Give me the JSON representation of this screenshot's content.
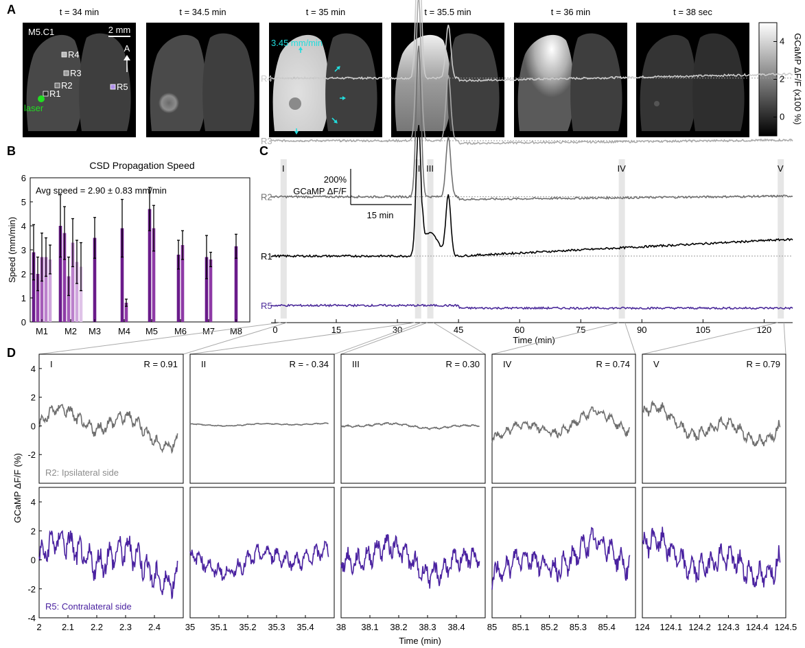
{
  "panels": {
    "A": {
      "letter": "A",
      "frames": [
        {
          "time_label": "t = 34 min",
          "frame_type": "baseline"
        },
        {
          "time_label": "t = 34.5 min",
          "frame_type": "onset"
        },
        {
          "time_label": "t = 35 min",
          "frame_type": "wave"
        },
        {
          "time_label": "t =  35.5 min",
          "frame_type": "spread"
        },
        {
          "time_label": "t = 36 min",
          "frame_type": "late"
        },
        {
          "time_label": "t = 38 sec",
          "frame_type": "recovery"
        }
      ],
      "animal_label": "M5.C1",
      "scale_label": "2 mm",
      "axis_label": "A",
      "speed_label": "3.45 mm/min",
      "laser_label": "laser",
      "roi_labels": [
        "R1",
        "R2",
        "R3",
        "R4",
        "R5"
      ],
      "colorbar": {
        "label": "GCaMP ΔF/F (x100 %)",
        "ticks": [
          "4",
          "2",
          "0"
        ],
        "range": [
          -1,
          5
        ]
      },
      "colors": {
        "laser": "#22dd22",
        "speed": "#22dddd",
        "r5": "#8855ee"
      }
    },
    "B": {
      "letter": "B",
      "chart_data": {
        "type": "bar",
        "title": "CSD Propagation Speed",
        "annotation": "Avg speed = 2.90 ± 0.83 mm/min",
        "ylabel": "Speed (mm/min)",
        "ylim": [
          0,
          6
        ],
        "yticks": [
          "0",
          "1",
          "2",
          "3",
          "4",
          "5",
          "6"
        ],
        "categories": [
          "M1",
          "M2",
          "M3",
          "M4",
          "M5",
          "M6",
          "M7",
          "M8"
        ],
        "groups": [
          {
            "category": "M1",
            "values": [
              2.9,
              2.0,
              2.7,
              2.7,
              2.6
            ],
            "errors": [
              1.15,
              0.7,
              1.0,
              0.8,
              0.6
            ]
          },
          {
            "category": "M2",
            "values": [
              4.0,
              3.7,
              1.9,
              3.3,
              2.5,
              2.3
            ],
            "errors": [
              1.3,
              1.1,
              0.8,
              1.0,
              0.9,
              1.0
            ]
          },
          {
            "category": "M3",
            "values": [
              3.5
            ],
            "errors": [
              0.85
            ]
          },
          {
            "category": "M4",
            "values": [
              3.9,
              0.8
            ],
            "errors": [
              1.2,
              0.15
            ]
          },
          {
            "category": "M5",
            "values": [
              4.7,
              3.9
            ],
            "errors": [
              0.9,
              0.95
            ]
          },
          {
            "category": "M6",
            "values": [
              2.8,
              3.2
            ],
            "errors": [
              0.6,
              0.6
            ]
          },
          {
            "category": "M7",
            "values": [
              2.7,
              2.6
            ],
            "errors": [
              0.9,
              0.3
            ]
          },
          {
            "category": "M8",
            "values": [
              3.15
            ],
            "errors": [
              0.5
            ]
          }
        ],
        "shade_colors": [
          "#6a1b8a",
          "#8e3aa6",
          "#a45cb8",
          "#bb80cc",
          "#cfa5dc",
          "#dfc3e8"
        ]
      }
    },
    "C": {
      "letter": "C",
      "chart_data": {
        "type": "line",
        "xlabel": "Time (min)",
        "xlim": [
          -1,
          127
        ],
        "xticks": [
          "0",
          "15",
          "30",
          "45",
          "60",
          "75",
          "90",
          "105",
          "120"
        ],
        "scalebar_y": "200%",
        "scalebar_y2": "GCaMP ΔF/F",
        "scalebar_x": "15 min",
        "windows": [
          {
            "label": "I",
            "t": 2
          },
          {
            "label": "II",
            "t": 35
          },
          {
            "label": "III",
            "t": 38
          },
          {
            "label": "IV",
            "t": 85
          },
          {
            "label": "V",
            "t": 124
          }
        ],
        "series": [
          {
            "name": "R4",
            "color": "#cccccc",
            "baseline_level": 3.45,
            "peak1": 2.3,
            "peak2": 0.8,
            "late_rise": 0.1
          },
          {
            "name": "R3",
            "color": "#aaaaaa",
            "baseline_level": 2.5,
            "peak1": 2.2,
            "peak2": 1.0,
            "late_rise": 0.05
          },
          {
            "name": "R2",
            "color": "#707070",
            "baseline_level": 1.65,
            "peak1": 2.3,
            "peak2": 0.9,
            "late_rise": 0.05
          },
          {
            "name": "R1",
            "color": "#000000",
            "baseline_level": 0.75,
            "peak1": 2.0,
            "peak2": 0.9,
            "late_rise": 0.25
          },
          {
            "name": "R5",
            "color": "#4b2a9a",
            "baseline_level": 0.0,
            "peak1": 0.0,
            "peak2": 0.0,
            "late_rise": 0.0
          }
        ]
      }
    },
    "D": {
      "letter": "D",
      "chart_data": {
        "type": "line",
        "ylabel": "GCaMP ΔF/F (%)",
        "xlabel": "Time (min)",
        "ylim": [
          -4,
          5
        ],
        "yticks": [
          "4",
          "2",
          "0",
          "-2",
          "-4"
        ],
        "top_label": "R2: Ipsilateral side",
        "bottom_label": "R5: Contralateral side",
        "top_color": "#6e6e6e",
        "bottom_color": "#4a22a0",
        "windows": [
          {
            "label": "I",
            "r": "R = 0.91",
            "xlim": [
              2,
              2.5
            ],
            "xticks": [
              "2",
              "2.1",
              "2.2",
              "2.3",
              "2.4"
            ],
            "top_amp": 1.3,
            "top_offset": 0.0,
            "bottom_amp": 1.6
          },
          {
            "label": "II",
            "r": "R = - 0.34",
            "xlim": [
              35,
              35.5
            ],
            "xticks": [
              "35",
              "35.1",
              "35.2",
              "35.3",
              "35.4"
            ],
            "top_amp": 0.09,
            "top_offset": 0.1,
            "bottom_amp": 0.9
          },
          {
            "label": "III",
            "r": "R = 0.30",
            "xlim": [
              38,
              38.5
            ],
            "xticks": [
              "38",
              "38.1",
              "38.2",
              "38.3",
              "38.4"
            ],
            "top_amp": 0.18,
            "top_offset": 0.0,
            "bottom_amp": 1.2
          },
          {
            "label": "IV",
            "r": "R = 0.74",
            "xlim": [
              85,
              85.5
            ],
            "xticks": [
              "85",
              "85.1",
              "85.2",
              "85.3",
              "85.4"
            ],
            "top_amp": 0.9,
            "top_offset": 0.0,
            "bottom_amp": 1.3
          },
          {
            "label": "V",
            "r": "R = 0.79",
            "xlim": [
              124,
              124.5
            ],
            "xticks": [
              "124",
              "124.1",
              "124.2",
              "124.3",
              "124.4",
              "124.5"
            ],
            "top_amp": 1.2,
            "top_offset": 0.0,
            "bottom_amp": 1.4
          }
        ]
      }
    }
  }
}
